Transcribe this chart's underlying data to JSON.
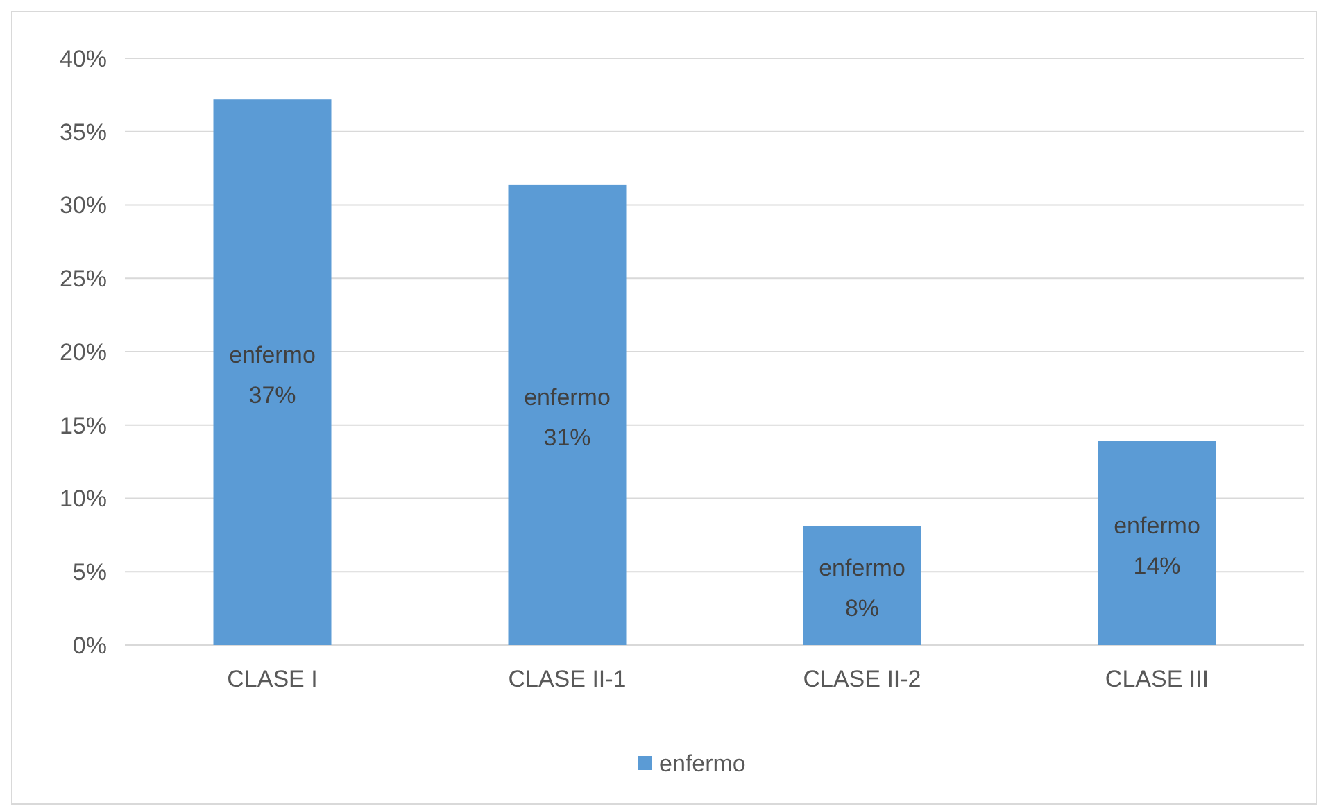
{
  "chart_data": {
    "type": "bar",
    "categories": [
      "CLASE I",
      "CLASE II-1",
      "CLASE II-2",
      "CLASE III"
    ],
    "series": [
      {
        "name": "enfermo",
        "color": "#5b9bd5",
        "values": [
          37.2,
          31.4,
          8.1,
          13.9
        ],
        "value_labels": [
          "37%",
          "31%",
          "8%",
          "14%"
        ]
      }
    ],
    "ylim": [
      0,
      40
    ],
    "yticks": [
      {
        "value": 0,
        "label": "0%"
      },
      {
        "value": 5,
        "label": "5%"
      },
      {
        "value": 10,
        "label": "10%"
      },
      {
        "value": 15,
        "label": "15%"
      },
      {
        "value": 20,
        "label": "20%"
      },
      {
        "value": 25,
        "label": "25%"
      },
      {
        "value": 30,
        "label": "30%"
      },
      {
        "value": 35,
        "label": "35%"
      },
      {
        "value": 40,
        "label": "40%"
      }
    ],
    "grid": "y",
    "legend": "bottom"
  }
}
